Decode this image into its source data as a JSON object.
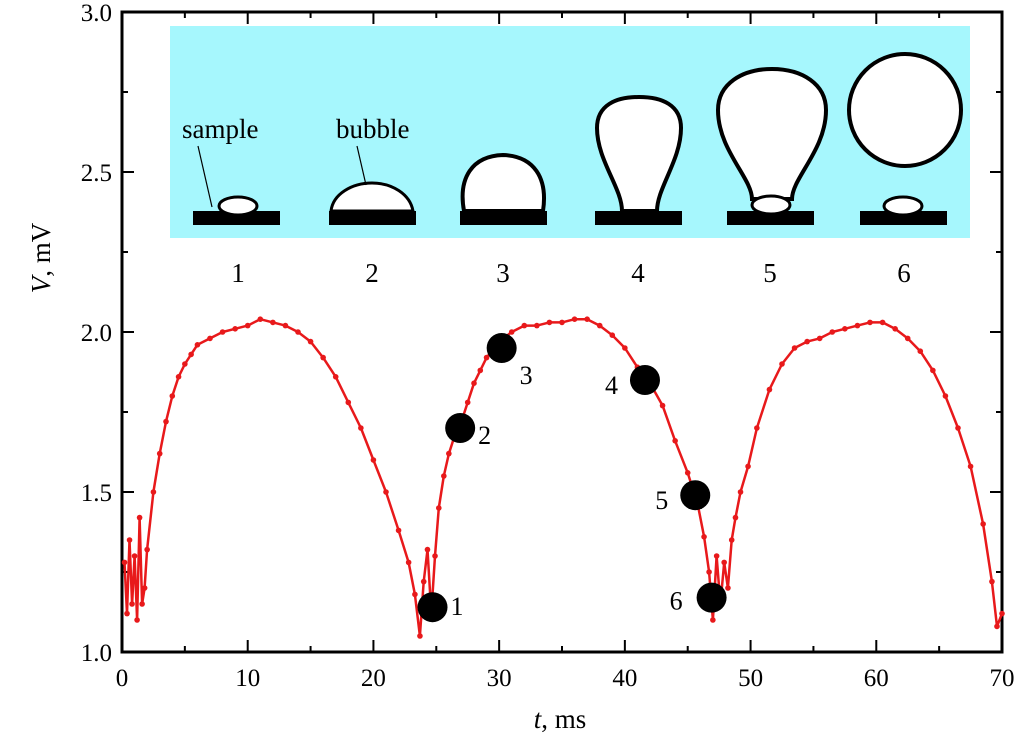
{
  "chart_data": {
    "type": "scatter",
    "xlabel": {
      "var": "t",
      "unit": ", ms"
    },
    "ylabel": {
      "var": "V",
      "unit": ", mV"
    },
    "xlim": [
      0,
      70
    ],
    "ylim": [
      1.0,
      3.0
    ],
    "x_ticks": [
      "0",
      "10",
      "20",
      "30",
      "40",
      "50",
      "60",
      "70"
    ],
    "y_ticks": [
      "1.0",
      "1.5",
      "2.0",
      "2.5",
      "3.0"
    ],
    "x_tick_values": [
      0,
      10,
      20,
      30,
      40,
      50,
      60,
      70
    ],
    "y_tick_values": [
      1.0,
      1.5,
      2.0,
      2.5,
      3.0
    ],
    "grid": false,
    "series_color": "#e8191b",
    "marker_color": "#000000",
    "series": [
      {
        "values": [
          [
            0.2,
            1.28
          ],
          [
            0.4,
            1.12
          ],
          [
            0.6,
            1.35
          ],
          [
            0.8,
            1.15
          ],
          [
            1.0,
            1.3
          ],
          [
            1.2,
            1.1
          ],
          [
            1.4,
            1.42
          ],
          [
            1.6,
            1.15
          ],
          [
            1.8,
            1.2
          ],
          [
            2.0,
            1.32
          ],
          [
            2.5,
            1.5
          ],
          [
            3.0,
            1.62
          ],
          [
            3.5,
            1.72
          ],
          [
            4.0,
            1.8
          ],
          [
            4.5,
            1.86
          ],
          [
            5.0,
            1.9
          ],
          [
            5.5,
            1.93
          ],
          [
            6.0,
            1.96
          ],
          [
            7.0,
            1.98
          ],
          [
            8.0,
            2.0
          ],
          [
            9.0,
            2.01
          ],
          [
            10.0,
            2.02
          ],
          [
            11.0,
            2.04
          ],
          [
            12.0,
            2.03
          ],
          [
            13.0,
            2.02
          ],
          [
            14.0,
            2.0
          ],
          [
            15.0,
            1.97
          ],
          [
            16.0,
            1.92
          ],
          [
            17.0,
            1.86
          ],
          [
            18.0,
            1.78
          ],
          [
            19.0,
            1.7
          ],
          [
            20.0,
            1.6
          ],
          [
            21.0,
            1.5
          ],
          [
            22.0,
            1.38
          ],
          [
            22.8,
            1.28
          ],
          [
            23.3,
            1.18
          ],
          [
            23.7,
            1.05
          ],
          [
            24.0,
            1.22
          ],
          [
            24.3,
            1.32
          ],
          [
            24.6,
            1.12
          ],
          [
            24.9,
            1.3
          ],
          [
            25.2,
            1.45
          ],
          [
            25.6,
            1.55
          ],
          [
            26.0,
            1.62
          ],
          [
            26.5,
            1.68
          ],
          [
            27.0,
            1.72
          ],
          [
            27.5,
            1.78
          ],
          [
            28.0,
            1.84
          ],
          [
            28.5,
            1.88
          ],
          [
            29.0,
            1.92
          ],
          [
            30.0,
            1.97
          ],
          [
            31.0,
            2.0
          ],
          [
            32.0,
            2.02
          ],
          [
            33.0,
            2.02
          ],
          [
            34.0,
            2.03
          ],
          [
            35.0,
            2.03
          ],
          [
            36.0,
            2.04
          ],
          [
            37.0,
            2.04
          ],
          [
            38.0,
            2.02
          ],
          [
            39.0,
            1.99
          ],
          [
            40.0,
            1.95
          ],
          [
            41.0,
            1.89
          ],
          [
            42.0,
            1.84
          ],
          [
            43.0,
            1.77
          ],
          [
            44.0,
            1.66
          ],
          [
            45.0,
            1.56
          ],
          [
            45.8,
            1.46
          ],
          [
            46.3,
            1.36
          ],
          [
            46.7,
            1.25
          ],
          [
            47.0,
            1.1
          ],
          [
            47.3,
            1.3
          ],
          [
            47.6,
            1.15
          ],
          [
            47.9,
            1.28
          ],
          [
            48.2,
            1.2
          ],
          [
            48.5,
            1.35
          ],
          [
            48.8,
            1.42
          ],
          [
            49.2,
            1.5
          ],
          [
            49.8,
            1.58
          ],
          [
            50.5,
            1.7
          ],
          [
            51.5,
            1.82
          ],
          [
            52.5,
            1.9
          ],
          [
            53.5,
            1.95
          ],
          [
            54.5,
            1.97
          ],
          [
            55.5,
            1.98
          ],
          [
            56.5,
            2.0
          ],
          [
            57.5,
            2.01
          ],
          [
            58.5,
            2.02
          ],
          [
            59.5,
            2.03
          ],
          [
            60.5,
            2.03
          ],
          [
            61.5,
            2.01
          ],
          [
            62.5,
            1.98
          ],
          [
            63.5,
            1.94
          ],
          [
            64.5,
            1.88
          ],
          [
            65.5,
            1.8
          ],
          [
            66.5,
            1.7
          ],
          [
            67.5,
            1.58
          ],
          [
            68.5,
            1.4
          ],
          [
            69.2,
            1.22
          ],
          [
            69.6,
            1.08
          ],
          [
            70.0,
            1.12
          ]
        ]
      }
    ],
    "marked_points": [
      {
        "label": "1",
        "x": 24.7,
        "y": 1.14
      },
      {
        "label": "2",
        "x": 26.9,
        "y": 1.7
      },
      {
        "label": "3",
        "x": 30.2,
        "y": 1.95
      },
      {
        "label": "4",
        "x": 41.6,
        "y": 1.85
      },
      {
        "label": "5",
        "x": 45.6,
        "y": 1.49
      },
      {
        "label": "6",
        "x": 46.9,
        "y": 1.17
      }
    ]
  },
  "inset": {
    "background_color": "#a6f7fd",
    "label_sample": "sample",
    "label_bubble": "bubble",
    "stage_labels": [
      "1",
      "2",
      "3",
      "4",
      "5",
      "6"
    ]
  }
}
